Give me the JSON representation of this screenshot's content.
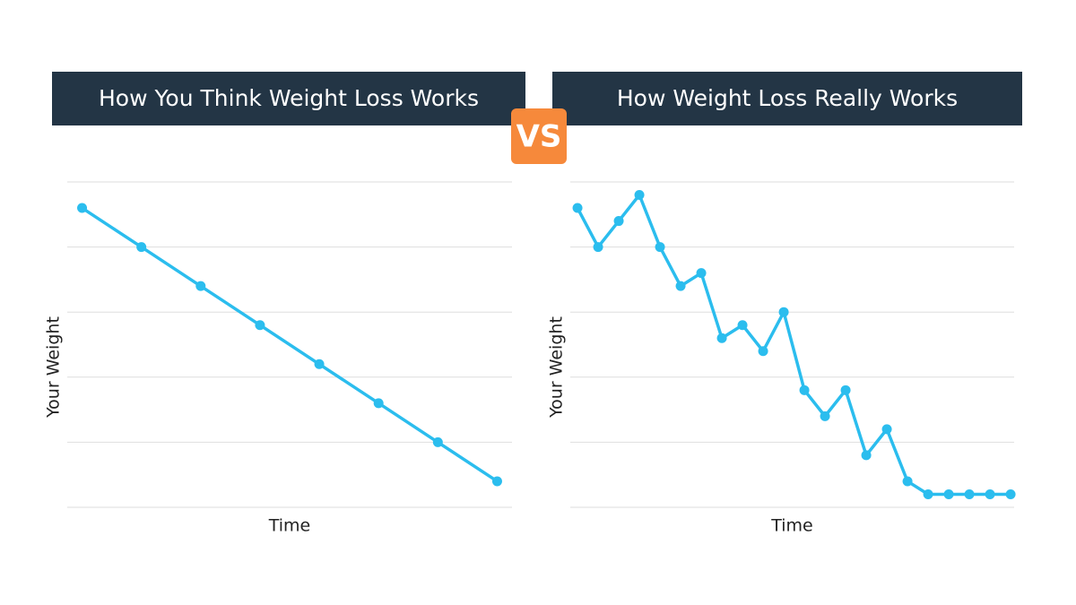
{
  "badge": "VS",
  "chart_data": [
    {
      "type": "line",
      "title": "How You Think Weight Loss Works",
      "xlabel": "Time",
      "ylabel": "Your Weight",
      "x": [
        0,
        1,
        2,
        3,
        4,
        5,
        6,
        7
      ],
      "xlim": [
        -0.25,
        7.25
      ],
      "ylim": [
        0,
        5
      ],
      "yticks": [
        0,
        1,
        2,
        3,
        4,
        5
      ],
      "grid": true,
      "show_tick_labels": false,
      "series": [
        {
          "name": "How You Think Weight Loss Works",
          "color": "#2bbdee",
          "values": [
            4.6,
            4.0,
            3.4,
            2.8,
            2.2,
            1.6,
            1.0,
            0.4
          ]
        }
      ]
    },
    {
      "type": "line",
      "title": "How Weight Loss Really Works",
      "xlabel": "Time",
      "ylabel": "Your Weight",
      "x": [
        0,
        1,
        2,
        3,
        4,
        5,
        6,
        7,
        8,
        9,
        10,
        11,
        12,
        13,
        14,
        15,
        16,
        17,
        18,
        19,
        20,
        21
      ],
      "xlim": [
        -0.35,
        21.17
      ],
      "ylim": [
        0,
        5
      ],
      "yticks": [
        0,
        1,
        2,
        3,
        4,
        5
      ],
      "grid": true,
      "show_tick_labels": false,
      "series": [
        {
          "name": "How Weight Loss Really Works",
          "color": "#2bbdee",
          "values": [
            4.6,
            4.0,
            4.4,
            4.8,
            4.0,
            3.4,
            3.6,
            2.6,
            2.8,
            2.4,
            3.0,
            1.8,
            1.4,
            1.8,
            0.8,
            1.2,
            0.4,
            0.2,
            0.2,
            0.2,
            0.2,
            0.2
          ]
        }
      ]
    }
  ]
}
